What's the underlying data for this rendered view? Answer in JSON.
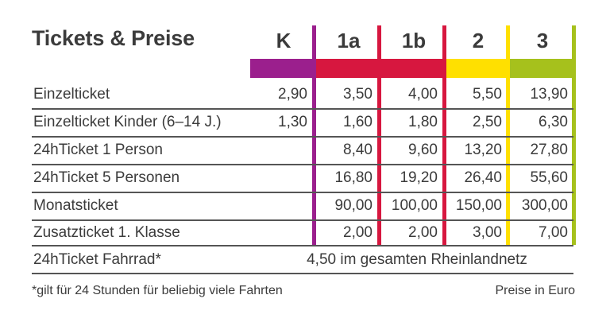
{
  "title": "Tickets & Preise",
  "colors": {
    "K": "#9b1f8d",
    "1a": "#d7173f",
    "1b": "#d7173f",
    "2": "#ffe000",
    "3": "#a6c11c"
  },
  "columns": [
    "K",
    "1a",
    "1b",
    "2",
    "3"
  ],
  "rows": [
    {
      "label": "Einzelticket",
      "values": [
        "2,90",
        "3,50",
        "4,00",
        "5,50",
        "13,90"
      ]
    },
    {
      "label": "Einzelticket Kinder (6–14 J.)",
      "values": [
        "1,30",
        "1,60",
        "1,80",
        "2,50",
        "6,30"
      ]
    },
    {
      "label": "24hTicket 1 Person",
      "values": [
        "",
        "8,40",
        "9,60",
        "13,20",
        "27,80"
      ]
    },
    {
      "label": "24hTicket 5 Personen",
      "values": [
        "",
        "16,80",
        "19,20",
        "26,40",
        "55,60"
      ]
    },
    {
      "label": "Monatsticket",
      "values": [
        "",
        "90,00",
        "100,00",
        "150,00",
        "300,00"
      ]
    },
    {
      "label": "Zusatzticket 1. Klasse",
      "values": [
        "",
        "2,00",
        "2,00",
        "3,00",
        "7,00"
      ]
    }
  ],
  "special_row": {
    "label": "24hTicket Fahrrad*",
    "text": "4,50 im gesamten Rheinlandnetz"
  },
  "footnote": "*gilt für 24 Stunden für beliebig viele Fahrten",
  "unit_note": "Preise in Euro"
}
